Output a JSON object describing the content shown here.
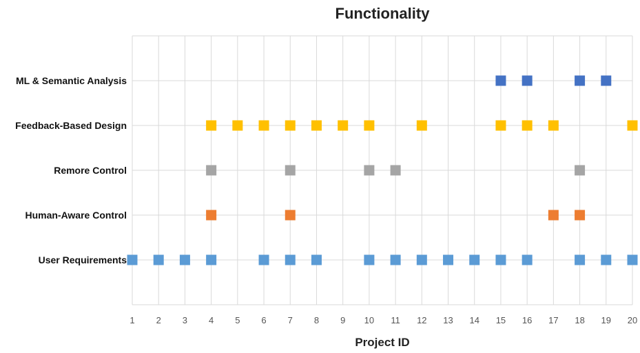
{
  "chart_data": {
    "type": "scatter",
    "title": "Functionality",
    "xlabel": "Project ID",
    "ylabel": "",
    "xlim": [
      1,
      20
    ],
    "x_ticks": [
      "1",
      "2",
      "3",
      "4",
      "5",
      "6",
      "7",
      "8",
      "9",
      "10",
      "11",
      "12",
      "13",
      "14",
      "15",
      "16",
      "17",
      "18",
      "19",
      "20"
    ],
    "categories": [
      "User Requirements",
      "Human-Aware Control",
      "Remore Control",
      "Feedback-Based Design",
      "ML & Semantic Analysis"
    ],
    "grid": true,
    "marker": "square",
    "series": [
      {
        "category": "User Requirements",
        "color": "#5b9bd5",
        "x": [
          1,
          2,
          3,
          4,
          6,
          7,
          8,
          10,
          11,
          12,
          13,
          14,
          15,
          16,
          18,
          19,
          20
        ]
      },
      {
        "category": "Human-Aware Control",
        "color": "#ed7d31",
        "x": [
          4,
          7,
          17,
          18
        ]
      },
      {
        "category": "Remore Control",
        "color": "#a5a5a5",
        "x": [
          4,
          7,
          10,
          11,
          18
        ]
      },
      {
        "category": "Feedback-Based Design",
        "color": "#ffc000",
        "x": [
          4,
          5,
          6,
          7,
          8,
          9,
          10,
          12,
          15,
          16,
          17,
          20
        ]
      },
      {
        "category": "ML & Semantic Analysis",
        "color": "#4472c4",
        "x": [
          15,
          16,
          18,
          19
        ]
      }
    ]
  }
}
